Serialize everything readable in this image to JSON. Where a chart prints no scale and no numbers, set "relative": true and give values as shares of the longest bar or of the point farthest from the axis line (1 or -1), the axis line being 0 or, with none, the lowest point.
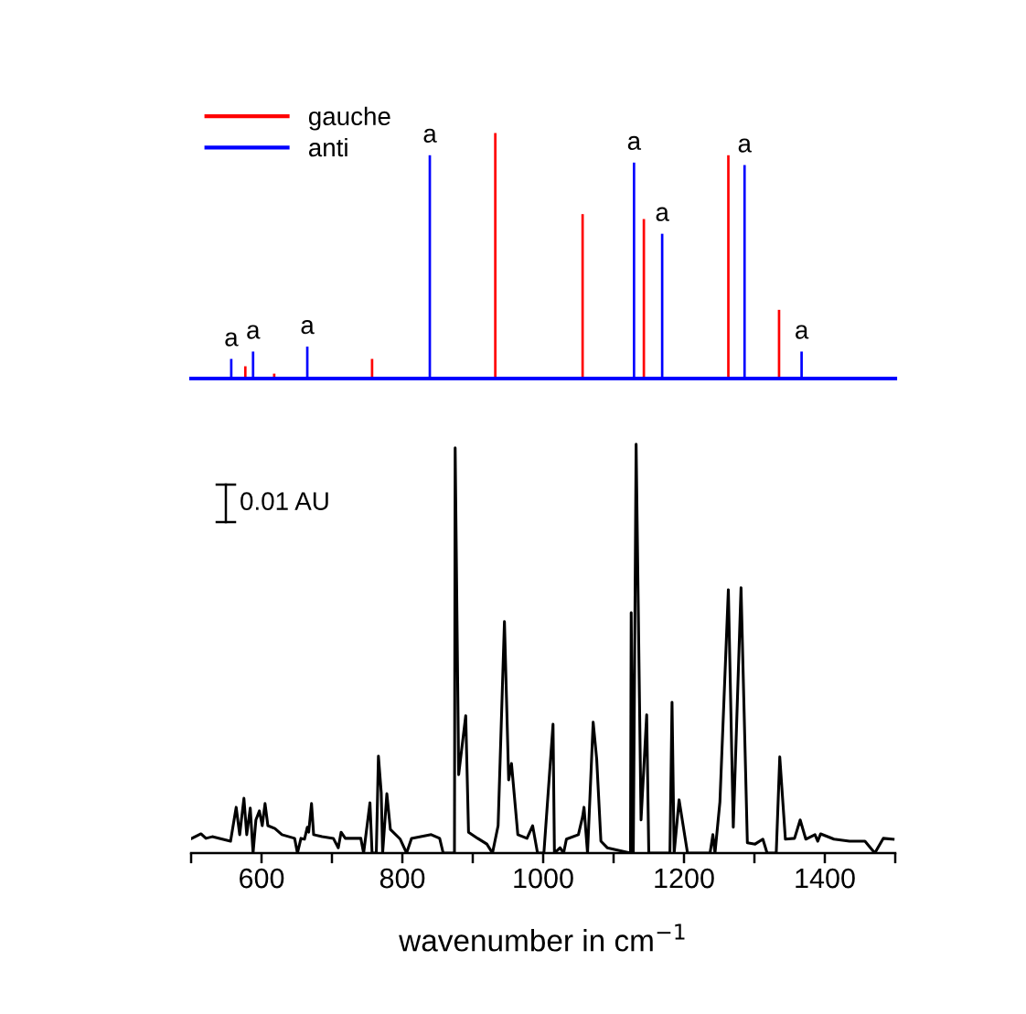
{
  "chart_data": [
    {
      "type": "bar",
      "relative": true,
      "xlim": [
        500,
        1500
      ],
      "legend": "top left",
      "series": [
        {
          "name": "gauche",
          "color": "#ff0000",
          "x": [
            577,
            618,
            757,
            932,
            1056,
            1143,
            1263,
            1335
          ],
          "values": [
            0.05,
            0.02,
            0.08,
            1.0,
            0.67,
            0.65,
            0.91,
            0.28
          ]
        },
        {
          "name": "anti",
          "color": "#0000ff",
          "x": [
            557,
            588,
            665,
            839,
            1129,
            1169,
            1286,
            1367
          ],
          "values": [
            0.08,
            0.11,
            0.13,
            0.91,
            0.88,
            0.59,
            0.87,
            0.11
          ]
        }
      ],
      "annotations": [
        {
          "text": "a",
          "x": 557,
          "y": 0.08
        },
        {
          "text": "a",
          "x": 588,
          "y": 0.11
        },
        {
          "text": "a",
          "x": 665,
          "y": 0.13
        },
        {
          "text": "a",
          "x": 839,
          "y": 0.91
        },
        {
          "text": "a",
          "x": 1129,
          "y": 0.88
        },
        {
          "text": "a",
          "x": 1169,
          "y": 0.59
        },
        {
          "text": "a",
          "x": 1286,
          "y": 0.87
        },
        {
          "text": "a",
          "x": 1367,
          "y": 0.11
        }
      ]
    },
    {
      "type": "line",
      "relative": true,
      "color": "#000000",
      "xlim": [
        500,
        1500
      ],
      "xticks": [
        {
          "value": 500,
          "label": null
        },
        600,
        {
          "value": 700,
          "label": null
        },
        800,
        {
          "value": 900,
          "label": null
        },
        1000,
        {
          "value": 1100,
          "label": null
        },
        1200,
        {
          "value": 1300,
          "label": null
        },
        1400,
        {
          "value": 1500,
          "label": null
        }
      ],
      "xlabel": "wavenumber in cm$^{−1}$",
      "annotations": [
        "0.01 AU"
      ],
      "x": [
        501,
        514,
        521,
        530,
        556,
        564,
        569,
        575,
        579,
        584,
        588,
        592,
        597,
        601,
        605,
        609,
        619,
        629,
        647,
        651,
        656,
        661,
        665,
        667,
        671,
        674,
        686,
        702,
        709,
        713,
        719,
        741,
        745,
        754,
        757,
        763,
        766,
        770,
        772,
        778,
        783,
        797,
        806,
        813,
        841,
        853,
        858,
        867,
        874,
        875,
        880,
        890,
        894,
        907,
        920,
        928,
        936,
        945,
        951,
        955,
        964,
        977,
        985,
        992,
        1001,
        1014,
        1016,
        1024,
        1029,
        1033,
        1050,
        1056,
        1058,
        1063,
        1071,
        1076,
        1082,
        1091,
        1124,
        1125,
        1128,
        1132,
        1139,
        1147,
        1150,
        1180,
        1183,
        1186,
        1193,
        1205,
        1237,
        1241,
        1244,
        1251,
        1263,
        1270,
        1281,
        1290,
        1301,
        1312,
        1318,
        1331,
        1336,
        1344,
        1357,
        1365,
        1373,
        1386,
        1390,
        1394,
        1413,
        1435,
        1457,
        1471,
        1483,
        1497
      ],
      "values": [
        0.036,
        0.047,
        0.036,
        0.04,
        0.029,
        0.112,
        0.045,
        0.134,
        0.045,
        0.11,
        0,
        0.081,
        0.103,
        0.067,
        0.121,
        0.067,
        0.06,
        0.045,
        0.036,
        0,
        0.036,
        0.034,
        0.063,
        0.051,
        0.121,
        0.045,
        0.04,
        0.036,
        0.013,
        0.051,
        0.036,
        0.036,
        0,
        0.123,
        0,
        0,
        0.237,
        0.148,
        0,
        0.145,
        0.058,
        0.034,
        0,
        0.036,
        0.045,
        0.036,
        0,
        0,
        0,
        0.991,
        0.192,
        0.336,
        0.051,
        0.036,
        0.022,
        0,
        0.067,
        0.566,
        0.179,
        0.219,
        0.045,
        0.036,
        0.067,
        0,
        0,
        0.315,
        0,
        0.013,
        0,
        0.034,
        0.045,
        0.089,
        0.112,
        0,
        0.32,
        0.23,
        0.029,
        0.013,
        0,
        0.588,
        0,
        1.0,
        0.081,
        0.338,
        0,
        0,
        0.369,
        0,
        0.13,
        0,
        0,
        0.045,
        0,
        0.125,
        0.644,
        0.063,
        0.649,
        0.025,
        0.022,
        0.034,
        0,
        0,
        0.235,
        0.034,
        0.036,
        0.081,
        0.034,
        0.045,
        0.029,
        0.047,
        0.034,
        0.029,
        0.029,
        0,
        0.036,
        0.034
      ]
    }
  ]
}
